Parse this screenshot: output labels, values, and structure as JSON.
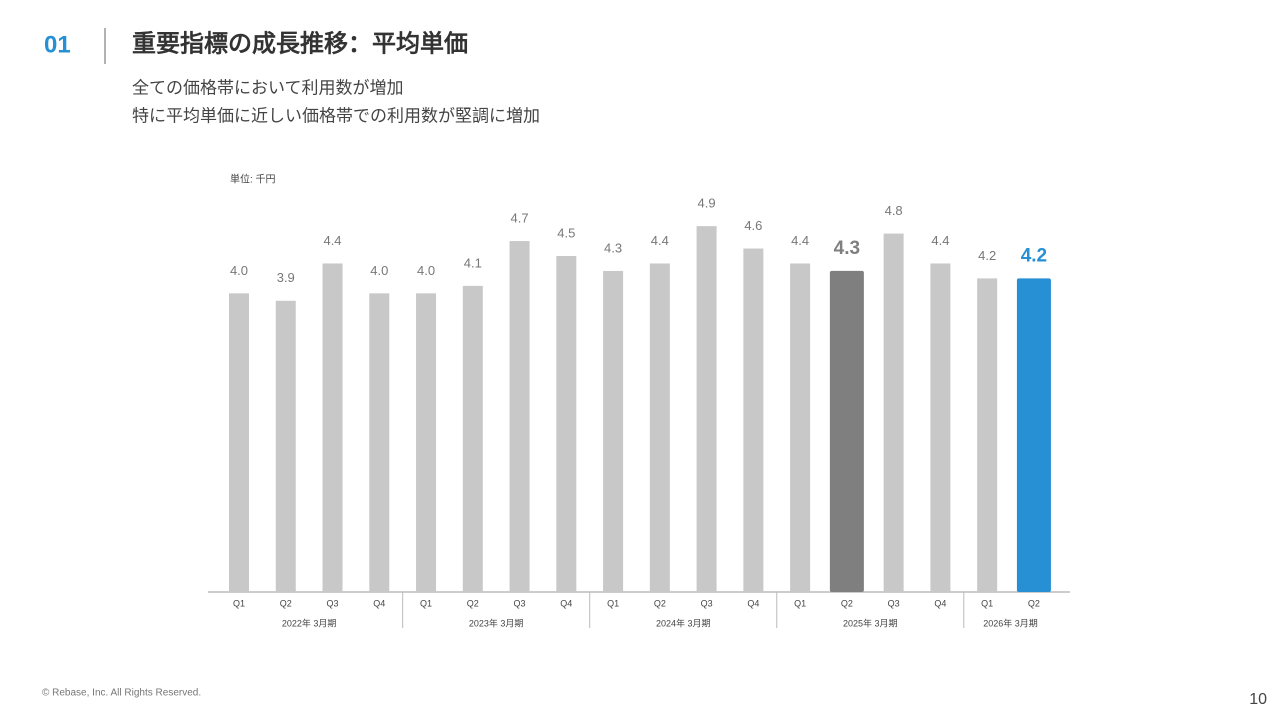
{
  "header": {
    "number": "01",
    "title": "重要指標の成長推移：平均単価",
    "subtitle": [
      "全ての価格帯において利用数が増加",
      "特に平均単価に近しい価格帯での利用数が堅調に増加"
    ]
  },
  "chart_data": {
    "type": "bar",
    "unit_label": "単位: 千円",
    "categories": [
      "Q1",
      "Q2",
      "Q3",
      "Q4",
      "Q1",
      "Q2",
      "Q3",
      "Q4",
      "Q1",
      "Q2",
      "Q3",
      "Q4",
      "Q1",
      "Q2",
      "Q3",
      "Q4",
      "Q1",
      "Q2"
    ],
    "groups": [
      "2022年 3月期",
      "2023年 3月期",
      "2024年 3月期",
      "2025年 3月期",
      "2026年 3月期"
    ],
    "values": [
      4.0,
      3.9,
      4.4,
      4.0,
      4.0,
      4.1,
      4.7,
      4.5,
      4.3,
      4.4,
      4.9,
      4.6,
      4.4,
      4.3,
      4.8,
      4.4,
      4.2,
      4.2
    ],
    "value_labels": [
      "4.0",
      "3.9",
      "4.4",
      "4.0",
      "4.0",
      "4.1",
      "4.7",
      "4.5",
      "4.3",
      "4.4",
      "4.9",
      "4.6",
      "4.4",
      "4.3",
      "4.8",
      "4.4",
      "4.2",
      "4.2"
    ],
    "color": "#c8c8c8",
    "colors": [
      "#c8c8c8",
      "#c8c8c8",
      "#c8c8c8",
      "#c8c8c8",
      "#c8c8c8",
      "#c8c8c8",
      "#c8c8c8",
      "#c8c8c8",
      "#c8c8c8",
      "#c8c8c8",
      "#c8c8c8",
      "#c8c8c8",
      "#c8c8c8",
      "#7f7f7f",
      "#c8c8c8",
      "#c8c8c8",
      "#c8c8c8",
      "#2790d4"
    ],
    "ylim": [
      0,
      5.25
    ]
  },
  "footer": {
    "copyright": "© Rebase, Inc. All Rights Reserved.",
    "page": "10"
  }
}
